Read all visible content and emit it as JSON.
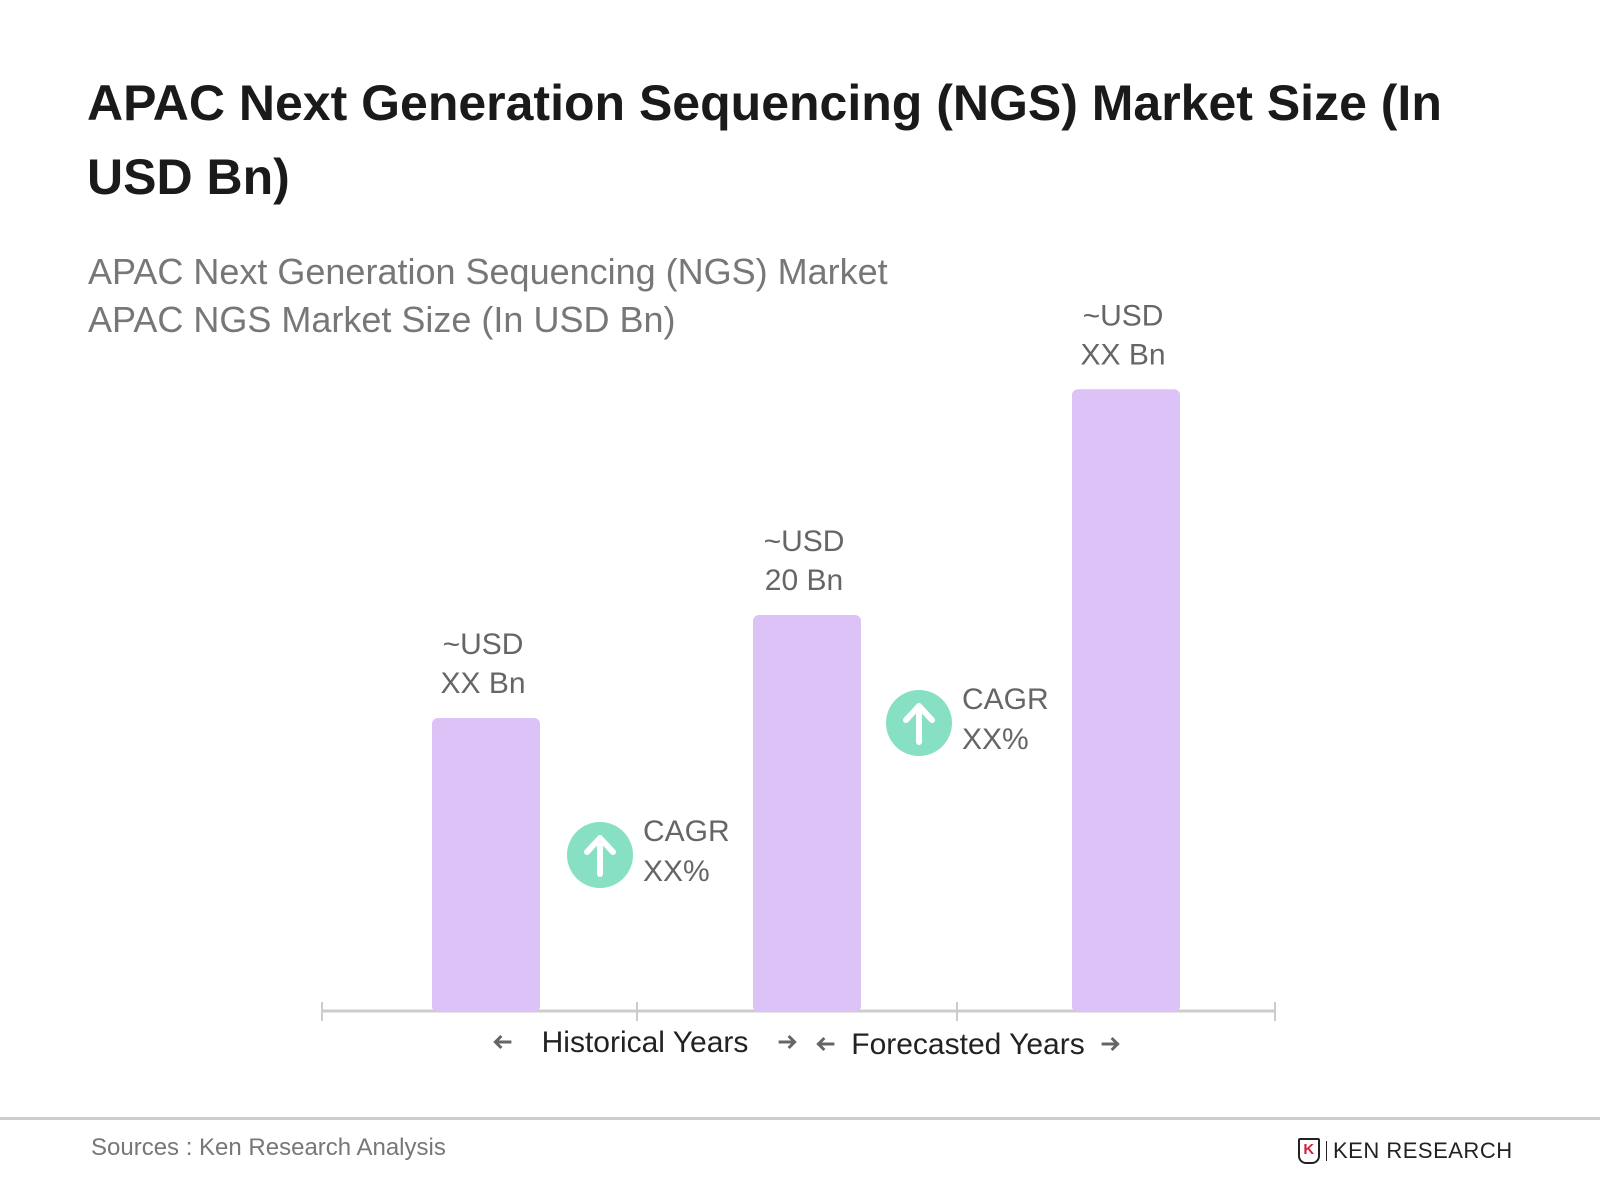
{
  "title": "APAC Next Generation Sequencing (NGS) Market Size (In USD Bn)",
  "subtitle_line1": "APAC Next Generation Sequencing (NGS) Market",
  "subtitle_line2": "APAC NGS Market Size (In USD Bn)",
  "source": "Sources : Ken Research Analysis",
  "logo_text": "KEN RESEARCH",
  "colors": {
    "bar": "#dcc2f7",
    "cagr_circle": "#87dfc4",
    "axis": "#cccccc",
    "label": "#666666"
  },
  "chart_data": {
    "type": "bar",
    "categories": [
      "",
      "",
      ""
    ],
    "values": [
      14.8,
      20,
      31.4
    ],
    "data_labels": [
      [
        "~USD",
        "XX Bn"
      ],
      [
        "~USD",
        "20 Bn"
      ],
      [
        "~USD",
        "XX Bn"
      ]
    ],
    "cagr_annotations": [
      [
        "CAGR",
        "XX%"
      ],
      [
        "CAGR",
        "XX%"
      ]
    ],
    "period_labels": [
      "Historical Years",
      "Forecasted Years"
    ],
    "grid": false,
    "legend": "none"
  }
}
